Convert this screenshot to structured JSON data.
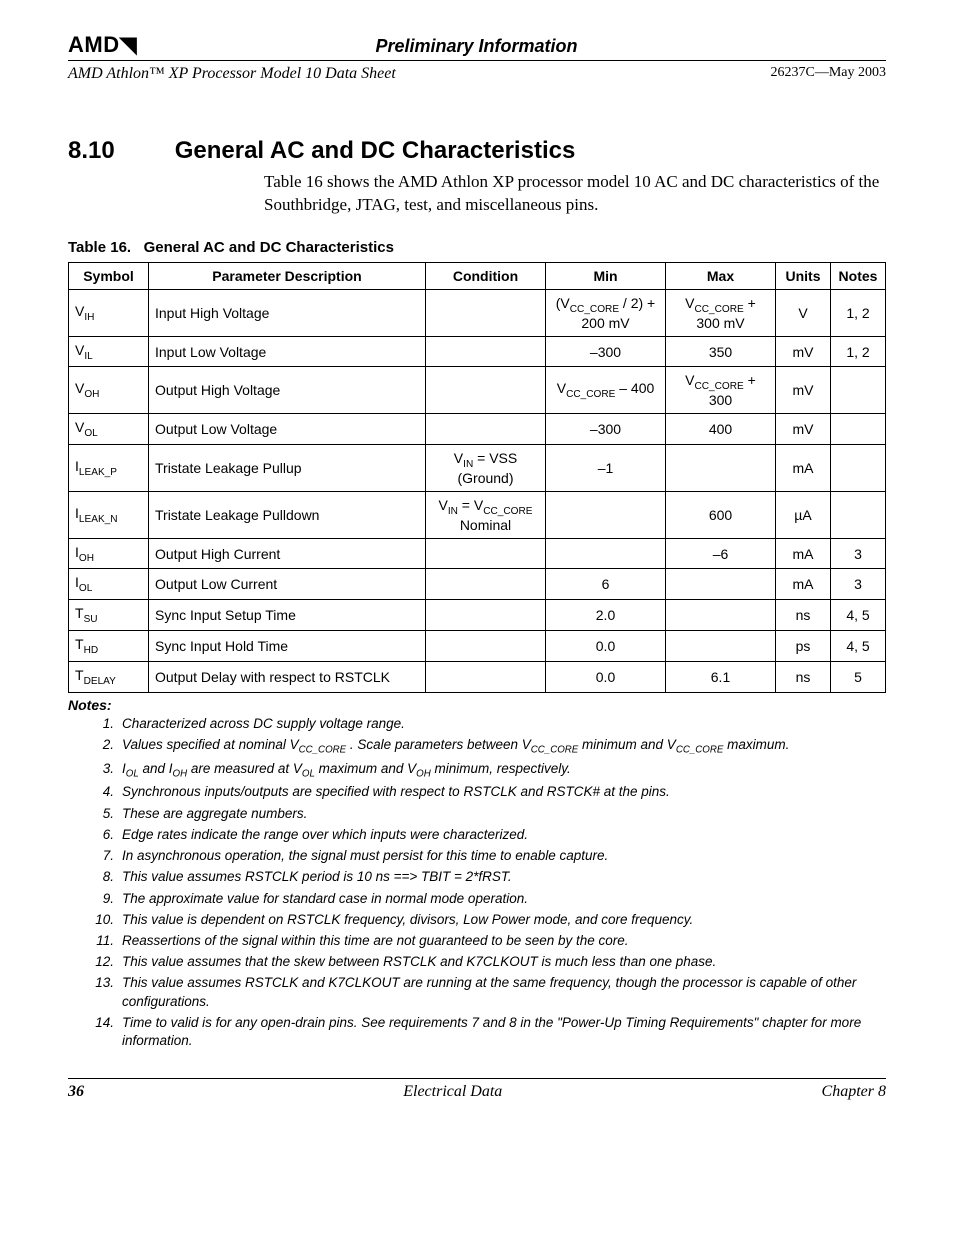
{
  "header": {
    "logo_text": "AMD",
    "prelim": "Preliminary Information",
    "doc_title": "AMD Athlon™ XP Processor Model 10 Data Sheet",
    "doc_num": "26237C—May 2003"
  },
  "section": {
    "number": "8.10",
    "title": "General AC and DC Characteristics",
    "body": "Table 16 shows the AMD Athlon XP processor model 10 AC and DC characteristics of the Southbridge, JTAG, test, and miscellaneous pins."
  },
  "table": {
    "caption_prefix": "Table 16.",
    "caption": "General AC and DC Characteristics",
    "columns": [
      "Symbol",
      "Parameter Description",
      "Condition",
      "Min",
      "Max",
      "Units",
      "Notes"
    ],
    "col_widths": [
      "80px",
      "auto",
      "120px",
      "120px",
      "110px",
      "55px",
      "55px"
    ],
    "rows": [
      {
        "sym": "V<sub>IH</sub>",
        "desc": "Input High Voltage",
        "cond": "",
        "min": "(V<sub>CC_CORE</sub> / 2) + 200 mV",
        "max": "V<sub>CC_CORE</sub> + 300 mV",
        "units": "V",
        "notes": "1, 2"
      },
      {
        "sym": "V<sub>IL</sub>",
        "desc": "Input Low Voltage",
        "cond": "",
        "min": "–300",
        "max": "350",
        "units": "mV",
        "notes": "1, 2"
      },
      {
        "sym": "V<sub>OH</sub>",
        "desc": "Output High Voltage",
        "cond": "",
        "min": "V<sub>CC_CORE</sub> – 400",
        "max": "V<sub>CC_CORE</sub> + 300",
        "units": "mV",
        "notes": ""
      },
      {
        "sym": "V<sub>OL</sub>",
        "desc": "Output Low Voltage",
        "cond": "",
        "min": "–300",
        "max": "400",
        "units": "mV",
        "notes": ""
      },
      {
        "sym": "I<sub>LEAK_P</sub>",
        "desc": "Tristate Leakage Pullup",
        "cond": "V<sub>IN</sub> = VSS (Ground)",
        "min": "–1",
        "max": "",
        "units": "mA",
        "notes": ""
      },
      {
        "sym": "I<sub>LEAK_N</sub>",
        "desc": "Tristate Leakage Pulldown",
        "cond": "V<sub>IN</sub> = V<sub>CC_CORE</sub> Nominal",
        "min": "",
        "max": "600",
        "units": "µA",
        "notes": ""
      },
      {
        "sym": "I<sub>OH</sub>",
        "desc": "Output High Current",
        "cond": "",
        "min": "",
        "max": "–6",
        "units": "mA",
        "notes": "3"
      },
      {
        "sym": "I<sub>OL</sub>",
        "desc": "Output Low Current",
        "cond": "",
        "min": "6",
        "max": "",
        "units": "mA",
        "notes": "3"
      },
      {
        "sym": "T<sub>SU</sub>",
        "desc": "Sync Input Setup Time",
        "cond": "",
        "min": "2.0",
        "max": "",
        "units": "ns",
        "notes": "4, 5"
      },
      {
        "sym": "T<sub>HD</sub>",
        "desc": "Sync Input Hold Time",
        "cond": "",
        "min": "0.0",
        "max": "",
        "units": "ps",
        "notes": "4, 5"
      },
      {
        "sym": "T<sub>DELAY</sub>",
        "desc": "Output Delay with respect to RSTCLK",
        "cond": "",
        "min": "0.0",
        "max": "6.1",
        "units": "ns",
        "notes": "5"
      }
    ]
  },
  "notes": {
    "heading": "Notes:",
    "items": [
      "Characterized across DC supply voltage range.",
      "Values specified at nominal V<sub>CC_CORE</sub> . Scale parameters between V<sub>CC_CORE</sub> minimum and V<sub>CC_CORE</sub> maximum.",
      "I<sub>OL</sub> and I<sub>OH</sub> are measured at V<sub>OL</sub> maximum and V<sub>OH</sub> minimum, respectively.",
      "Synchronous inputs/outputs are specified with respect to RSTCLK and RSTCK# at the pins.",
      "These are aggregate numbers.",
      "Edge rates indicate the range over which inputs were characterized.",
      "In asynchronous operation, the signal must persist for this time to enable capture.",
      "This value assumes RSTCLK period is 10 ns ==> TBIT = 2*fRST.",
      "The approximate value for standard case in normal mode operation.",
      "This value is dependent on RSTCLK frequency, divisors, Low Power mode, and core frequency.",
      "Reassertions of the signal within this time are not guaranteed to be seen by the core.",
      "This value assumes that the skew between RSTCLK and K7CLKOUT is much less than one phase.",
      "This value assumes RSTCLK and K7CLKOUT are running at the same frequency, though the processor is capable of other configurations.",
      "Time to valid is for any open-drain pins. See requirements 7 and 8  in the \"Power-Up Timing Requirements\" chapter for more information."
    ]
  },
  "footer": {
    "page": "36",
    "center": "Electrical Data",
    "right": "Chapter 8"
  }
}
